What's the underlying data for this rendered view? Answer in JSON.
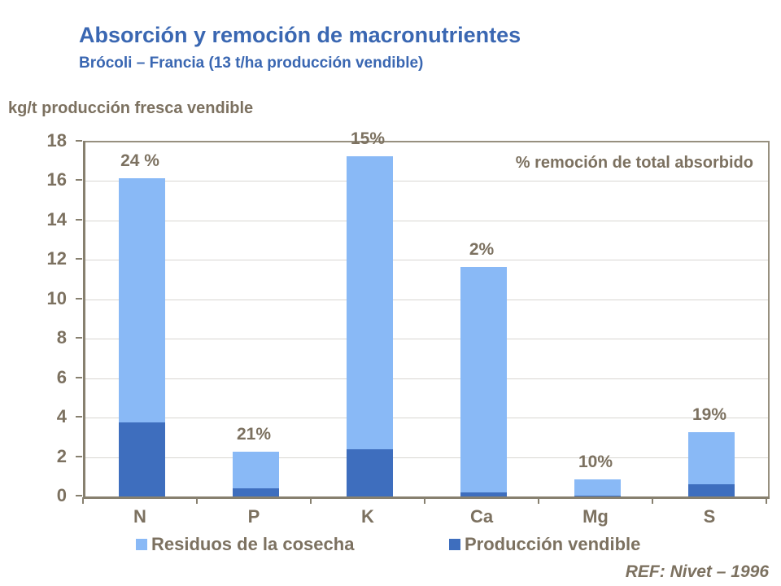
{
  "header": {
    "title": "Absorción y remoción de macronutrientes",
    "subtitle": "Brócoli – Francia (13 t/ha producción vendible)"
  },
  "footer": {
    "ref": "REF: Nivet – 1996"
  },
  "colors": {
    "title_blue": "#3A67B2",
    "text_gray_brown": "#7C7160",
    "light_blue": "#89B9F6",
    "dark_blue": "#3E6EBE",
    "gridline": "#D8D6D2",
    "axis": "#87806F"
  },
  "chart_data": {
    "type": "bar",
    "stacked": true,
    "title": "Absorción y remoción de macronutrientes",
    "ylabel": "kg/t producción  fresca vendible",
    "xlabel": "",
    "categories": [
      "N",
      "P",
      "K",
      "Ca",
      "Mg",
      "S"
    ],
    "series": [
      {
        "name": "Producción vendible",
        "color": "#3E6EBE",
        "values": [
          3.8,
          0.45,
          2.45,
          0.25,
          0.1,
          0.65
        ]
      },
      {
        "name": "Residuos de la cosecha",
        "color": "#89B9F6",
        "values": [
          12.4,
          1.85,
          14.85,
          11.45,
          0.8,
          2.65
        ]
      }
    ],
    "totals": [
      16.2,
      2.3,
      17.3,
      11.7,
      0.9,
      3.3
    ],
    "bar_labels": [
      "24 %",
      "21%",
      "15%",
      "2%",
      "10%",
      "19%"
    ],
    "annotation": "% remoción de total absorbido",
    "ylim": [
      0,
      18
    ],
    "ytick_step": 2,
    "yticks": [
      0,
      2,
      4,
      6,
      8,
      10,
      12,
      14,
      16,
      18
    ],
    "grid": true,
    "legend_position": "bottom"
  }
}
